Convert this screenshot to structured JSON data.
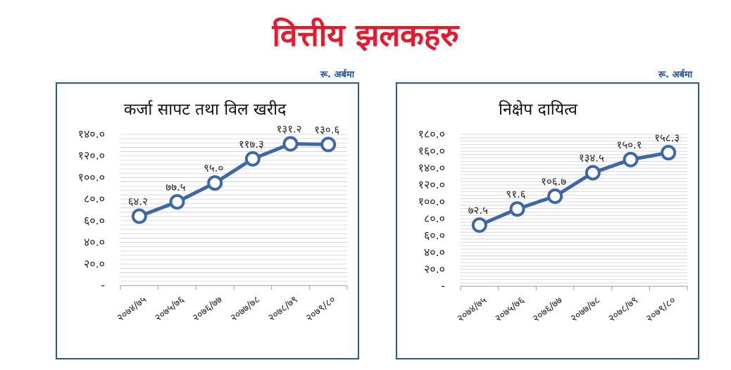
{
  "page": {
    "title": "वित्तीय झलकहरु"
  },
  "chart_data": [
    {
      "type": "line",
      "title": "कर्जा सापट तथा विल खरीद",
      "unit_label": "रू. अर्बमा",
      "categories": [
        "२०७४/७५",
        "२०७५/७६",
        "२०७६/७७",
        "२०७७/७८",
        "२०७८/७९",
        "२०७९/८०"
      ],
      "values": [
        64.2,
        77.5,
        95.0,
        117.3,
        131.2,
        130.6
      ],
      "value_labels": [
        "६४.२",
        "७७.५",
        "९५.०",
        "११७.३",
        "१३१.२",
        "१३०.६"
      ],
      "yticks": [
        0,
        20,
        40,
        60,
        80,
        100,
        120,
        140
      ],
      "ytick_labels": [
        "-",
        "२०.०",
        "४०.०",
        "६०.०",
        "८०.०",
        "१००.०",
        "१२०.०",
        "१४०.०"
      ],
      "ylim": [
        0,
        140
      ],
      "grid": true,
      "color": "#3c68a9"
    },
    {
      "type": "line",
      "title": "निक्षेप दायित्व",
      "unit_label": "रू. अर्बमा",
      "categories": [
        "२०७४/७५",
        "२०७५/७६",
        "२०७६/७७",
        "२०७७/७८",
        "२०७८/७९",
        "२०७९/८०"
      ],
      "values": [
        72.5,
        91.6,
        106.7,
        134.5,
        150.1,
        158.3
      ],
      "value_labels": [
        "७२.५",
        "९१.६",
        "१०६.७",
        "१३४.५",
        "१५०.१",
        "१५८.३"
      ],
      "yticks": [
        0,
        20,
        40,
        60,
        80,
        100,
        120,
        140,
        160,
        180
      ],
      "ytick_labels": [
        "-",
        "२०.०",
        "४०.०",
        "६०.०",
        "८०.०",
        "१००.०",
        "१२०.०",
        "१४०.०",
        "१६०.०",
        "१८०.०"
      ],
      "ylim": [
        0,
        180
      ],
      "grid": true,
      "color": "#3c68a9"
    }
  ]
}
